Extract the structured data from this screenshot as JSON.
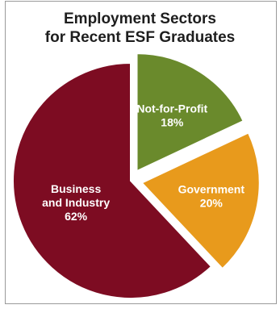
{
  "title_lines": [
    "Employment Sectors",
    "for Recent ESF Graduates"
  ],
  "chart_data": {
    "type": "pie",
    "title": "Employment Sectors for Recent ESF Graduates",
    "slices": [
      {
        "label_lines": [
          "Not-for-Profit",
          "18%"
        ],
        "name": "Not-for-Profit",
        "value": 18,
        "color": "#6a8a2c",
        "exploded": true
      },
      {
        "label_lines": [
          "Government",
          "20%"
        ],
        "name": "Government",
        "value": 20,
        "color": "#e89a1c",
        "exploded": true
      },
      {
        "label_lines": [
          "Business",
          "and Industry",
          "62%"
        ],
        "name": "Business and Industry",
        "value": 62,
        "color": "#7d0c22",
        "exploded": false
      }
    ]
  }
}
